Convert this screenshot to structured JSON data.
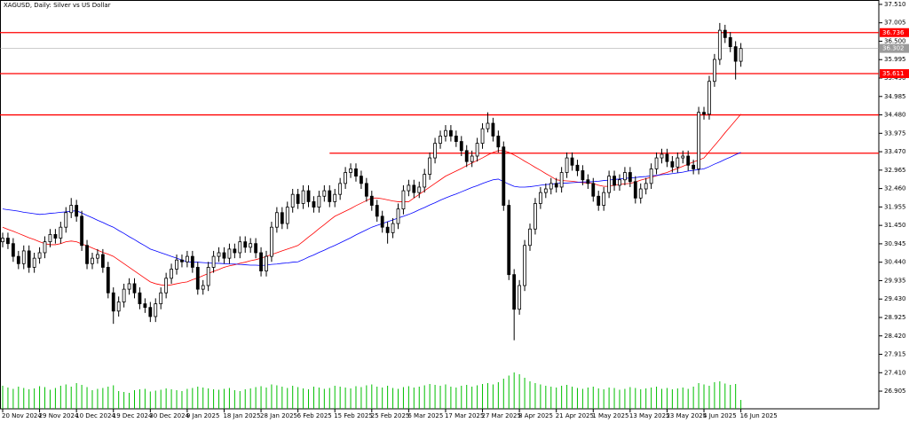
{
  "chart_data": {
    "type": "candlestick",
    "title": "XAGUSD, Daily:  Silver vs US Dollar",
    "categories": [
      "20 Nov 2024",
      null,
      null,
      null,
      null,
      null,
      null,
      "29 Nov 2024",
      null,
      null,
      null,
      null,
      null,
      null,
      "10 Dec 2024",
      null,
      null,
      null,
      null,
      null,
      null,
      "19 Dec 2024",
      null,
      null,
      null,
      null,
      null,
      null,
      "30 Dec 2024",
      null,
      null,
      null,
      null,
      null,
      null,
      "9 Jan 2025",
      null,
      null,
      null,
      null,
      null,
      null,
      "18 Jan 2025",
      null,
      null,
      null,
      null,
      null,
      null,
      "28 Jan 2025",
      null,
      null,
      null,
      null,
      null,
      null,
      "6 Feb 2025",
      null,
      null,
      null,
      null,
      null,
      null,
      "15 Feb 2025",
      null,
      null,
      null,
      null,
      null,
      null,
      "25 Feb 2025",
      null,
      null,
      null,
      null,
      null,
      null,
      "6 Mar 2025",
      null,
      null,
      null,
      null,
      null,
      null,
      "17 Mar 2025",
      null,
      null,
      null,
      null,
      null,
      null,
      "27 Mar 2025",
      null,
      null,
      null,
      null,
      null,
      null,
      "8 Apr 2025",
      null,
      null,
      null,
      null,
      null,
      null,
      "21 Apr 2025",
      null,
      null,
      null,
      null,
      null,
      null,
      "1 May 2025",
      null,
      null,
      null,
      null,
      null,
      null,
      "13 May 2025",
      null,
      null,
      null,
      null,
      null,
      null,
      "23 May 2025",
      null,
      null,
      null,
      null,
      null,
      null,
      "4 Jun 2025",
      null,
      null,
      null,
      null,
      null,
      null,
      "16 Jun 2025"
    ],
    "open": [
      31.0,
      31.1,
      30.95,
      30.6,
      30.4,
      30.75,
      30.3,
      30.55,
      30.7,
      31.0,
      31.2,
      31.1,
      31.4,
      31.8,
      32.0,
      31.7,
      30.9,
      30.4,
      30.55,
      30.65,
      30.3,
      29.6,
      29.1,
      29.35,
      29.7,
      29.85,
      29.6,
      29.3,
      29.2,
      28.95,
      29.3,
      29.6,
      30.0,
      30.25,
      30.5,
      30.45,
      30.6,
      30.3,
      29.7,
      29.8,
      30.3,
      30.6,
      30.7,
      30.55,
      30.8,
      30.7,
      31.0,
      30.85,
      30.95,
      30.7,
      30.2,
      30.6,
      31.4,
      31.8,
      31.5,
      31.95,
      32.3,
      32.05,
      32.4,
      32.1,
      31.95,
      32.25,
      32.4,
      32.1,
      32.3,
      32.6,
      32.9,
      33.0,
      32.8,
      32.6,
      32.25,
      32.0,
      31.7,
      31.4,
      31.25,
      31.5,
      31.9,
      32.4,
      32.55,
      32.35,
      32.5,
      32.85,
      33.3,
      33.7,
      33.9,
      34.05,
      33.9,
      33.75,
      33.5,
      33.2,
      33.35,
      33.7,
      34.1,
      34.25,
      33.9,
      33.6,
      32.0,
      30.1,
      29.15,
      29.8,
      30.9,
      31.35,
      32.05,
      32.35,
      32.45,
      32.6,
      32.5,
      32.9,
      33.3,
      33.1,
      32.95,
      32.7,
      32.6,
      32.25,
      32.0,
      32.35,
      32.8,
      32.55,
      32.7,
      32.9,
      32.65,
      32.2,
      32.45,
      32.6,
      33.0,
      33.3,
      33.4,
      33.2,
      33.05,
      33.3,
      33.35,
      33.1,
      33.0,
      34.55,
      34.5,
      35.4,
      36.0,
      36.8,
      36.6,
      36.35,
      35.95
    ],
    "high": [
      31.25,
      31.25,
      31.1,
      30.75,
      30.9,
      30.9,
      30.7,
      30.85,
      31.15,
      31.35,
      31.35,
      31.55,
      31.95,
      32.2,
      32.15,
      31.85,
      31.05,
      30.7,
      30.8,
      30.8,
      30.45,
      29.75,
      29.5,
      29.85,
      30.0,
      30.0,
      29.75,
      29.45,
      29.35,
      29.45,
      29.75,
      30.15,
      30.4,
      30.65,
      30.65,
      30.75,
      30.75,
      30.45,
      29.95,
      30.45,
      30.75,
      30.85,
      30.85,
      30.95,
      30.95,
      31.15,
      31.15,
      31.1,
      31.1,
      30.85,
      30.75,
      31.55,
      31.95,
      31.95,
      32.1,
      32.45,
      32.45,
      32.55,
      32.55,
      32.25,
      32.4,
      32.55,
      32.55,
      32.45,
      32.75,
      33.05,
      33.15,
      33.15,
      32.95,
      32.75,
      32.4,
      32.15,
      31.85,
      31.55,
      31.65,
      32.05,
      32.55,
      32.7,
      32.7,
      32.65,
      33.0,
      33.45,
      33.85,
      34.05,
      34.2,
      34.2,
      34.05,
      33.9,
      33.65,
      33.5,
      33.85,
      34.25,
      34.55,
      34.4,
      34.05,
      33.75,
      32.15,
      30.25,
      29.95,
      31.05,
      31.5,
      32.2,
      32.5,
      32.6,
      32.75,
      32.75,
      33.05,
      33.45,
      33.45,
      33.25,
      33.1,
      32.85,
      32.75,
      32.4,
      32.5,
      32.95,
      32.95,
      32.85,
      33.05,
      33.05,
      32.8,
      32.6,
      32.75,
      33.15,
      33.45,
      33.55,
      33.55,
      33.35,
      33.45,
      33.5,
      33.5,
      33.25,
      34.7,
      34.7,
      35.55,
      36.15,
      37.0,
      36.95,
      36.75,
      36.5,
      36.45
    ],
    "low": [
      30.85,
      30.8,
      30.45,
      30.25,
      30.25,
      30.15,
      30.15,
      30.4,
      30.55,
      30.85,
      30.95,
      30.95,
      31.25,
      31.65,
      31.55,
      30.75,
      30.25,
      30.25,
      30.4,
      30.15,
      29.45,
      28.75,
      28.95,
      29.2,
      29.55,
      29.45,
      29.15,
      29.05,
      28.8,
      28.8,
      29.15,
      29.45,
      29.85,
      30.1,
      30.3,
      30.3,
      30.15,
      29.55,
      29.55,
      29.65,
      30.15,
      30.45,
      30.4,
      30.4,
      30.55,
      30.55,
      30.7,
      30.7,
      30.55,
      30.05,
      30.05,
      30.45,
      31.25,
      31.35,
      31.35,
      31.8,
      31.9,
      31.9,
      31.95,
      31.8,
      31.8,
      32.1,
      31.95,
      31.95,
      32.15,
      32.45,
      32.75,
      32.65,
      32.45,
      32.1,
      31.85,
      31.55,
      31.25,
      30.95,
      31.1,
      31.35,
      31.75,
      32.25,
      32.2,
      32.2,
      32.35,
      32.7,
      33.15,
      33.55,
      33.75,
      33.75,
      33.6,
      33.35,
      33.05,
      33.05,
      33.2,
      33.55,
      34.0,
      33.75,
      33.45,
      31.85,
      29.95,
      28.3,
      29.0,
      29.65,
      30.75,
      31.2,
      31.9,
      32.2,
      32.3,
      32.35,
      32.35,
      32.75,
      32.95,
      32.8,
      32.55,
      32.45,
      32.1,
      31.85,
      31.85,
      32.2,
      32.4,
      32.4,
      32.55,
      32.5,
      32.05,
      32.05,
      32.3,
      32.45,
      32.85,
      33.15,
      33.05,
      32.9,
      32.9,
      33.15,
      32.95,
      32.85,
      32.85,
      34.35,
      34.35,
      35.25,
      35.85,
      36.45,
      36.2,
      35.45,
      35.8
    ],
    "close": [
      31.1,
      30.95,
      30.6,
      30.4,
      30.75,
      30.3,
      30.55,
      30.7,
      31.0,
      31.2,
      31.1,
      31.4,
      31.8,
      32.0,
      31.7,
      30.9,
      30.4,
      30.55,
      30.65,
      30.3,
      29.6,
      29.1,
      29.35,
      29.7,
      29.85,
      29.6,
      29.3,
      29.2,
      28.95,
      29.3,
      29.6,
      30.0,
      30.25,
      30.5,
      30.45,
      30.6,
      30.3,
      29.7,
      29.8,
      30.3,
      30.6,
      30.7,
      30.55,
      30.8,
      30.7,
      31.0,
      30.85,
      30.95,
      30.7,
      30.2,
      30.6,
      31.4,
      31.8,
      31.5,
      31.95,
      32.3,
      32.05,
      32.4,
      32.1,
      31.95,
      32.25,
      32.4,
      32.1,
      32.3,
      32.6,
      32.9,
      33.0,
      32.8,
      32.6,
      32.25,
      32.0,
      31.7,
      31.4,
      31.25,
      31.5,
      31.9,
      32.4,
      32.55,
      32.35,
      32.5,
      32.85,
      33.3,
      33.7,
      33.9,
      34.05,
      33.9,
      33.75,
      33.5,
      33.2,
      33.35,
      33.7,
      34.1,
      34.25,
      33.9,
      33.6,
      32.0,
      30.1,
      29.15,
      29.8,
      30.9,
      31.35,
      32.05,
      32.35,
      32.45,
      32.6,
      32.5,
      32.9,
      33.3,
      33.1,
      32.95,
      32.7,
      32.6,
      32.25,
      32.0,
      32.35,
      32.8,
      32.55,
      32.7,
      32.9,
      32.65,
      32.2,
      32.45,
      32.6,
      33.0,
      33.3,
      33.4,
      33.2,
      33.05,
      33.3,
      33.35,
      33.1,
      33.0,
      34.55,
      34.5,
      35.4,
      36.0,
      36.8,
      36.6,
      36.35,
      35.95,
      36.3
    ],
    "up_color": "#ffffff",
    "down_color": "#000000",
    "candle_outline": "#000000",
    "moving_averages": [
      {
        "color": "#ff0000",
        "values": [
          31.4,
          31.34,
          31.29,
          31.23,
          31.17,
          31.11,
          31.06,
          31.0,
          30.95,
          30.92,
          30.92,
          30.95,
          31.0,
          31.02,
          31.0,
          30.94,
          30.89,
          30.83,
          30.77,
          30.71,
          30.66,
          30.6,
          30.5,
          30.4,
          30.3,
          30.2,
          30.1,
          30.0,
          29.9,
          29.85,
          29.82,
          29.8,
          29.82,
          29.85,
          29.88,
          29.9,
          29.96,
          30.01,
          30.07,
          30.13,
          30.19,
          30.24,
          30.3,
          30.34,
          30.37,
          30.41,
          30.44,
          30.48,
          30.51,
          30.55,
          30.6,
          30.65,
          30.7,
          30.75,
          30.8,
          30.85,
          30.9,
          31.01,
          31.13,
          31.24,
          31.36,
          31.47,
          31.59,
          31.7,
          31.77,
          31.84,
          31.91,
          31.99,
          32.06,
          32.13,
          32.2,
          32.2,
          32.18,
          32.15,
          32.12,
          32.1,
          32.1,
          32.1,
          32.2,
          32.3,
          32.4,
          32.5,
          32.6,
          32.7,
          32.8,
          32.87,
          32.94,
          33.01,
          33.09,
          33.16,
          33.23,
          33.3,
          33.38,
          33.45,
          33.5,
          33.5,
          33.45,
          33.38,
          33.3,
          33.21,
          33.13,
          33.04,
          32.96,
          32.87,
          32.79,
          32.7,
          32.68,
          32.67,
          32.66,
          32.64,
          32.62,
          32.61,
          32.6,
          32.55,
          32.52,
          32.52,
          32.55,
          32.57,
          32.59,
          32.6,
          32.64,
          32.69,
          32.73,
          32.77,
          32.81,
          32.86,
          32.9,
          32.96,
          33.01,
          33.07,
          33.13,
          33.19,
          33.24,
          33.3,
          33.47,
          33.64,
          33.81,
          33.99,
          34.16,
          34.33,
          34.5
        ]
      },
      {
        "color": "#0000ff",
        "values": [
          31.9,
          31.88,
          31.86,
          31.84,
          31.81,
          31.79,
          31.77,
          31.75,
          31.76,
          31.78,
          31.79,
          31.81,
          31.82,
          31.84,
          31.85,
          31.79,
          31.72,
          31.66,
          31.59,
          31.53,
          31.46,
          31.4,
          31.31,
          31.23,
          31.14,
          31.06,
          30.97,
          30.89,
          30.8,
          30.75,
          30.7,
          30.65,
          30.6,
          30.55,
          30.5,
          30.45,
          30.44,
          30.44,
          30.43,
          30.42,
          30.41,
          30.41,
          30.4,
          30.39,
          30.39,
          30.38,
          30.37,
          30.36,
          30.36,
          30.35,
          30.36,
          30.38,
          30.39,
          30.41,
          30.42,
          30.44,
          30.45,
          30.51,
          30.58,
          30.64,
          30.71,
          30.77,
          30.84,
          30.9,
          30.97,
          31.04,
          31.11,
          31.19,
          31.26,
          31.33,
          31.4,
          31.45,
          31.5,
          31.55,
          31.6,
          31.65,
          31.7,
          31.75,
          31.81,
          31.88,
          31.94,
          32.01,
          32.07,
          32.14,
          32.2,
          32.26,
          32.31,
          32.37,
          32.43,
          32.49,
          32.54,
          32.6,
          32.65,
          32.7,
          32.72,
          32.65,
          32.58,
          32.52,
          32.5,
          32.5,
          32.51,
          32.53,
          32.55,
          32.57,
          32.58,
          32.6,
          32.61,
          32.61,
          32.62,
          32.63,
          32.64,
          32.64,
          32.65,
          32.66,
          32.68,
          32.69,
          32.71,
          32.72,
          32.74,
          32.75,
          32.76,
          32.78,
          32.79,
          32.81,
          32.82,
          32.84,
          32.85,
          32.87,
          32.89,
          32.91,
          32.94,
          32.96,
          32.98,
          33.0,
          33.06,
          33.13,
          33.19,
          33.26,
          33.32,
          33.39,
          33.45
        ]
      }
    ],
    "volume": {
      "color": "#00c000",
      "lim": [
        0,
        120000
      ],
      "values": [
        52000,
        48000,
        45000,
        50000,
        47000,
        44000,
        46000,
        51000,
        49000,
        43000,
        47000,
        52000,
        55000,
        50000,
        58000,
        54000,
        49000,
        42000,
        45000,
        47000,
        50000,
        53000,
        40000,
        38000,
        36000,
        42000,
        44000,
        45000,
        39000,
        41000,
        43000,
        46000,
        44000,
        42000,
        40000,
        45000,
        47000,
        50000,
        48000,
        46000,
        44000,
        43000,
        45000,
        47000,
        42000,
        40000,
        44000,
        46000,
        49000,
        51000,
        48000,
        55000,
        53000,
        50000,
        47000,
        52000,
        49000,
        46000,
        44000,
        50000,
        48000,
        45000,
        47000,
        52000,
        50000,
        48000,
        46000,
        51000,
        49000,
        53000,
        55000,
        50000,
        48000,
        52000,
        47000,
        45000,
        49000,
        51000,
        48000,
        50000,
        53000,
        56000,
        54000,
        52000,
        55000,
        50000,
        48000,
        52000,
        54000,
        50000,
        53000,
        56000,
        58000,
        55000,
        60000,
        68000,
        75000,
        82000,
        78000,
        70000,
        62000,
        58000,
        55000,
        52000,
        50000,
        48000,
        52000,
        54000,
        50000,
        47000,
        45000,
        48000,
        50000,
        46000,
        44000,
        48000,
        47000,
        43000,
        45000,
        49000,
        47000,
        44000,
        46000,
        48000,
        50000,
        45000,
        47000,
        44000,
        46000,
        48000,
        45000,
        50000,
        58000,
        55000,
        52000,
        60000,
        62000,
        57000,
        54000,
        56000,
        20000
      ]
    },
    "levels": [
      {
        "value": 36.736,
        "color": "#ff0000",
        "tag": true
      },
      {
        "value": 35.611,
        "color": "#ff0000",
        "tag": true
      },
      {
        "value": 34.48,
        "color": "#ff0000",
        "tag": false
      },
      {
        "value": 33.43,
        "color": "#ff0000",
        "tag": false,
        "start": 62
      }
    ],
    "bid": {
      "value": 36.302,
      "color": "#9a9a9a"
    },
    "ylim": [
      26.42,
      37.63
    ],
    "yticks": [
      {
        "value": 37.51,
        "label": "37.510"
      },
      37.005,
      {
        "value": 36.5,
        "label": "36.500"
      },
      35.995,
      {
        "value": 35.49,
        "label": "35.490"
      },
      34.985,
      {
        "value": 34.48,
        "label": "34.480"
      },
      33.975,
      {
        "value": 33.47,
        "label": "33.470"
      },
      32.965,
      {
        "value": 32.46,
        "label": "32.460"
      },
      31.955,
      {
        "value": 31.45,
        "label": "31.450"
      },
      30.945,
      {
        "value": 30.44,
        "label": "30.440"
      },
      29.935,
      {
        "value": 29.43,
        "label": "29.430"
      },
      28.925,
      {
        "value": 28.42,
        "label": "28.420"
      },
      27.915,
      {
        "value": 27.41,
        "label": "27.410"
      },
      26.905
    ],
    "grid": false
  }
}
